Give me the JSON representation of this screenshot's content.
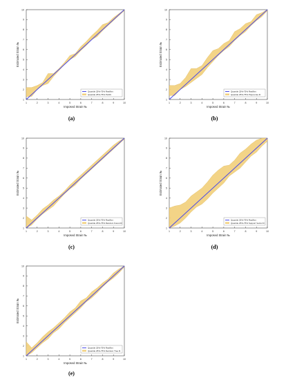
{
  "colors": {
    "band": "#f2cf7a",
    "band_edge": "#d7a93a",
    "realnet": "#4a4ae8",
    "other": "#c8c8c8",
    "axis": "#444444"
  },
  "chart_data": [
    {
      "type": "area",
      "label": "(a)",
      "xlabel": "Imposed Strain ‰",
      "ylabel": "Estimated Strain ‰",
      "xlim": [
        1,
        10
      ],
      "ylim": [
        1,
        10
      ],
      "xticks": [
        "1",
        "2",
        "3",
        "4",
        "5",
        "6",
        "7",
        "8",
        "9",
        "10"
      ],
      "yticks": [
        "1",
        "2",
        "3",
        "4",
        "5",
        "6",
        "7",
        "8",
        "9",
        "10"
      ],
      "legend_position": "bottom-right",
      "series": [
        {
          "name": "Quantile 25%-75% RealNet",
          "x": [
            1,
            10
          ],
          "y": [
            1,
            10
          ]
        },
        {
          "name": "Quantile 25%-75% PoNN",
          "x": [
            1,
            1.5,
            2,
            2.5,
            3,
            3.5,
            4,
            4.5,
            5,
            5.5,
            6,
            6.5,
            7,
            7.5,
            8,
            8.5,
            9,
            9.5,
            10
          ],
          "lower": [
            1.3,
            1.3,
            2.0,
            2.4,
            2.6,
            3.3,
            3.9,
            4.5,
            5.0,
            5.3,
            5.9,
            6.4,
            7.0,
            7.3,
            7.9,
            8.4,
            8.9,
            9.4,
            9.9
          ],
          "upper": [
            2.2,
            2.2,
            2.4,
            2.7,
            3.6,
            3.6,
            4.1,
            4.7,
            5.4,
            5.6,
            6.3,
            6.8,
            7.4,
            7.9,
            8.5,
            8.7,
            9.2,
            9.6,
            10.0
          ]
        }
      ]
    },
    {
      "type": "area",
      "label": "(b)",
      "xlabel": "Imposed Strain ‰",
      "ylabel": "Estimated Strain ‰",
      "xlim": [
        1,
        10
      ],
      "ylim": [
        1,
        10
      ],
      "xticks": [
        "1",
        "2",
        "3",
        "4",
        "5",
        "6",
        "7",
        "8",
        "9",
        "10"
      ],
      "yticks": [
        "1",
        "2",
        "3",
        "4",
        "5",
        "6",
        "7",
        "8",
        "9",
        "10"
      ],
      "legend_position": "bottom-right",
      "series": [
        {
          "name": "Quantile 25%-75% RealNet",
          "x": [
            1,
            10
          ],
          "y": [
            1,
            10
          ]
        },
        {
          "name": "Quantile 25%-75% Polynomia R.",
          "x": [
            1,
            1.5,
            2,
            2.5,
            3,
            3.5,
            4,
            4.5,
            5,
            5.5,
            6,
            6.5,
            7,
            7.5,
            8,
            8.5,
            9,
            9.5,
            10
          ],
          "lower": [
            1.4,
            1.4,
            2.0,
            2.3,
            2.7,
            3.1,
            3.5,
            4.2,
            4.8,
            5.4,
            5.9,
            6.3,
            6.9,
            7.4,
            7.8,
            8.4,
            8.9,
            9.3,
            9.9
          ],
          "upper": [
            2.4,
            2.4,
            2.6,
            3.2,
            4.1,
            4.1,
            4.4,
            5.2,
            5.9,
            6.1,
            6.6,
            6.9,
            7.8,
            8.1,
            8.6,
            8.8,
            9.5,
            9.7,
            10.0
          ]
        }
      ]
    },
    {
      "type": "area",
      "label": "(c)",
      "xlabel": "Imposed Strain ‰",
      "ylabel": "Estimated Strain ‰",
      "xlim": [
        1,
        10
      ],
      "ylim": [
        1,
        10
      ],
      "xticks": [
        "1",
        "2",
        "3",
        "4",
        "5",
        "6",
        "7",
        "8",
        "9",
        "10"
      ],
      "yticks": [
        "1",
        "2",
        "3",
        "4",
        "5",
        "6",
        "7",
        "8",
        "9",
        "10"
      ],
      "legend_position": "bottom-right",
      "series": [
        {
          "name": "Quantile 25%-75% RealNet",
          "x": [
            1,
            10
          ],
          "y": [
            1,
            10
          ]
        },
        {
          "name": "Quantile 25%-75% Random Forest R.",
          "x": [
            1,
            1.5,
            2,
            2.5,
            3,
            3.5,
            4,
            4.5,
            5,
            5.5,
            6,
            6.5,
            7,
            7.5,
            8,
            8.5,
            9,
            9.5,
            10
          ],
          "lower": [
            0.9,
            1.3,
            1.9,
            2.4,
            2.8,
            3.2,
            3.8,
            4.4,
            4.9,
            5.3,
            5.9,
            6.4,
            6.9,
            7.4,
            7.9,
            8.4,
            8.9,
            9.4,
            9.9
          ],
          "upper": [
            2.2,
            1.8,
            2.3,
            2.9,
            3.3,
            3.8,
            4.2,
            4.7,
            5.3,
            5.8,
            6.3,
            6.8,
            7.3,
            7.8,
            8.3,
            8.8,
            9.3,
            9.7,
            10.0
          ]
        }
      ]
    },
    {
      "type": "area",
      "label": "(d)",
      "xlabel": "Imposed Strain ‰",
      "ylabel": "Estimated Strain ‰",
      "xlim": [
        1,
        10
      ],
      "ylim": [
        1,
        10
      ],
      "xticks": [
        "1",
        "2",
        "3",
        "4",
        "5",
        "6",
        "7",
        "8",
        "9",
        "10"
      ],
      "yticks": [
        "1",
        "2",
        "3",
        "4",
        "5",
        "6",
        "7",
        "8",
        "9",
        "10"
      ],
      "legend_position": "bottom-right",
      "series": [
        {
          "name": "Quantile 25%-75% RealNet",
          "x": [
            1,
            10
          ],
          "y": [
            1,
            10
          ]
        },
        {
          "name": "Quantile 25%-75% Support Vector R.",
          "x": [
            1,
            1.5,
            2,
            2.5,
            3,
            3.5,
            4,
            4.5,
            5,
            5.5,
            6,
            6.5,
            7,
            7.5,
            8,
            8.5,
            9,
            9.5,
            10
          ],
          "lower": [
            1.0,
            1.2,
            1.5,
            2.0,
            2.6,
            3.1,
            3.4,
            3.9,
            4.5,
            5.0,
            5.5,
            6.2,
            6.6,
            7.0,
            7.6,
            8.2,
            8.6,
            9.2,
            9.7
          ],
          "upper": [
            3.0,
            3.2,
            3.3,
            3.6,
            4.2,
            4.6,
            5.0,
            5.6,
            6.3,
            6.8,
            7.2,
            7.3,
            7.8,
            8.5,
            8.9,
            9.4,
            9.8,
            10.0,
            10.0
          ]
        }
      ]
    },
    {
      "type": "area",
      "label": "(e)",
      "xlabel": "Imposed Strain ‰",
      "ylabel": "Estimated Strain ‰",
      "xlim": [
        1,
        10
      ],
      "ylim": [
        1,
        10
      ],
      "xticks": [
        "1",
        "2",
        "3",
        "4",
        "5",
        "6",
        "7",
        "8",
        "9",
        "10"
      ],
      "yticks": [
        "1",
        "2",
        "3",
        "4",
        "5",
        "6",
        "7",
        "8",
        "9",
        "10"
      ],
      "legend_position": "bottom-right",
      "series": [
        {
          "name": "Quantile 25%-75% RealNet",
          "x": [
            1,
            10
          ],
          "y": [
            1,
            10
          ]
        },
        {
          "name": "Quantile 25%-75% Decision Tree R.",
          "x": [
            1,
            1.5,
            2,
            2.5,
            3,
            3.5,
            4,
            4.5,
            5,
            5.5,
            6,
            6.5,
            7,
            7.5,
            8,
            8.5,
            9,
            9.5,
            10
          ],
          "lower": [
            1.0,
            1.3,
            1.8,
            2.3,
            2.7,
            3.3,
            3.7,
            4.3,
            4.8,
            5.3,
            5.8,
            6.4,
            6.8,
            7.3,
            7.9,
            8.4,
            8.8,
            9.3,
            9.9
          ],
          "upper": [
            2.4,
            1.8,
            2.3,
            2.9,
            3.4,
            3.8,
            4.3,
            4.8,
            5.4,
            5.8,
            6.5,
            6.8,
            7.4,
            7.8,
            8.3,
            8.7,
            9.3,
            9.7,
            10.0
          ]
        }
      ]
    }
  ]
}
